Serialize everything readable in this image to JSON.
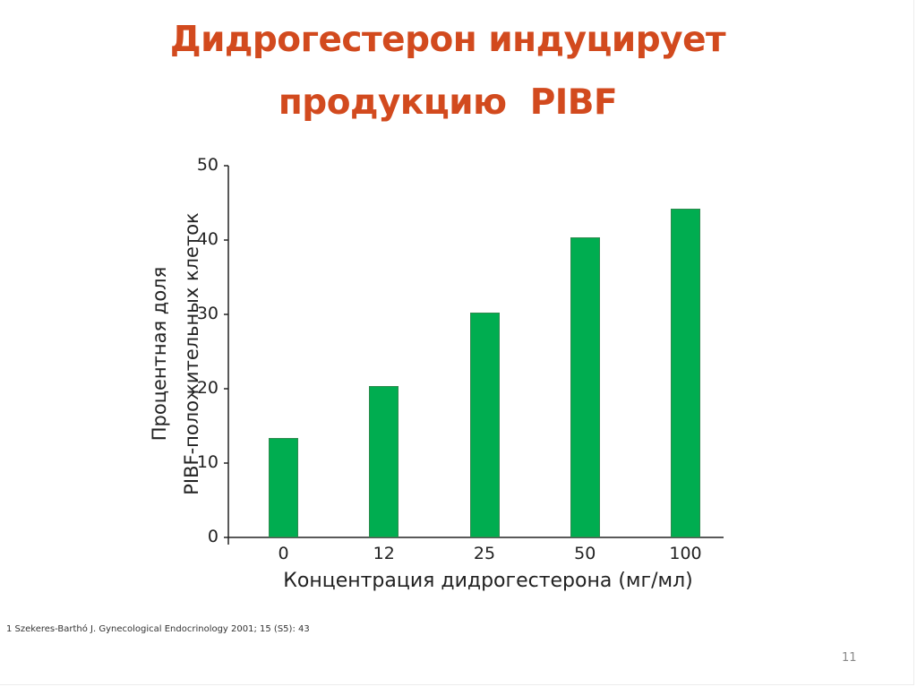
{
  "slide": {
    "title_line1": "Дидрогестерон индуцирует",
    "title_line2": "продукцию  PIBF",
    "citation": "1 Szekeres-Barthó J. Gynecological Endocrinology 2001; 15 (S5): 43",
    "page_number": "11",
    "colors": {
      "title": "#d24a1e",
      "bar_fill": "#00ad50",
      "bar_border": "#2f8a4e",
      "axis": "#222222"
    }
  },
  "chart_data": {
    "type": "bar",
    "title": "Дидрогестерон индуцирует продукцию PIBF",
    "categories": [
      "0",
      "12",
      "25",
      "50",
      "100"
    ],
    "values": [
      13.4,
      20.4,
      30.2,
      40.4,
      44.2
    ],
    "xlabel": "Концентрация дидрогестерона (мг/мл)",
    "ylabel_line1": "Процентная доля",
    "ylabel_line2": "PIBF-положительных клеток",
    "ylim": [
      0,
      50
    ],
    "yticks": [
      "0",
      "10",
      "20",
      "30",
      "40",
      "50"
    ],
    "grid": false,
    "legend": null
  }
}
